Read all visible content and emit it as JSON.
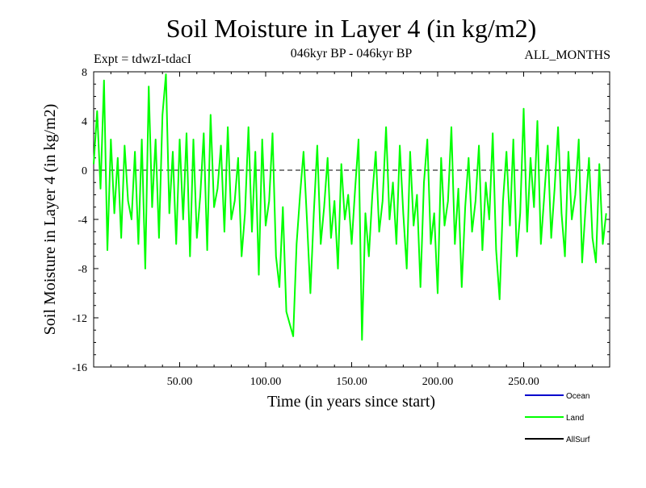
{
  "chart_data": {
    "type": "line",
    "title": "Soil Moisture in Layer 4 (in kg/m2)",
    "subtitle_left": "Expt = tdwzI-tdacI",
    "subtitle_center": "046kyr BP - 046kyr BP",
    "subtitle_right": "ALL_MONTHS",
    "xlabel": "Time (in years since start)",
    "ylabel": "Soil Moisture in Layer 4 (in kg/m2)",
    "xlim": [
      0,
      300
    ],
    "ylim": [
      -16,
      8
    ],
    "xticks": [
      50,
      100,
      150,
      200,
      250
    ],
    "xtick_labels": [
      "50.00",
      "100.00",
      "150.00",
      "200.00",
      "250.00"
    ],
    "yticks": [
      -16,
      -12,
      -8,
      -4,
      0,
      4,
      8
    ],
    "ytick_labels": [
      "-16",
      "-12",
      "-8",
      "-4",
      "0",
      "4",
      "8"
    ],
    "zero_line": true,
    "grid": false,
    "legend_position": "bottom-right",
    "series": [
      {
        "name": "Ocean",
        "color": "#0000cc",
        "x": [],
        "y": []
      },
      {
        "name": "Land",
        "color": "#00ff00",
        "x": [
          0,
          2,
          4,
          6,
          8,
          10,
          12,
          14,
          16,
          18,
          20,
          22,
          24,
          26,
          28,
          30,
          32,
          34,
          36,
          38,
          40,
          42,
          44,
          46,
          48,
          50,
          52,
          54,
          56,
          58,
          60,
          62,
          64,
          66,
          68,
          70,
          72,
          74,
          76,
          78,
          80,
          82,
          84,
          86,
          88,
          90,
          92,
          94,
          96,
          98,
          100,
          102,
          104,
          106,
          108,
          110,
          112,
          114,
          116,
          118,
          120,
          122,
          124,
          126,
          128,
          130,
          132,
          134,
          136,
          138,
          140,
          142,
          144,
          146,
          148,
          150,
          152,
          154,
          156,
          158,
          160,
          162,
          164,
          166,
          168,
          170,
          172,
          174,
          176,
          178,
          180,
          182,
          184,
          186,
          188,
          190,
          192,
          194,
          196,
          198,
          200,
          202,
          204,
          206,
          208,
          210,
          212,
          214,
          216,
          218,
          220,
          222,
          224,
          226,
          228,
          230,
          232,
          234,
          236,
          238,
          240,
          242,
          244,
          246,
          248,
          250,
          252,
          254,
          256,
          258,
          260,
          262,
          264,
          266,
          268,
          270,
          272,
          274,
          276,
          278,
          280,
          282,
          284,
          286,
          288,
          290,
          292,
          294,
          296,
          298
        ],
        "y": [
          0.5,
          4.8,
          -1.5,
          7.3,
          -6.5,
          2.5,
          -3.5,
          1.0,
          -5.5,
          2.0,
          -2.5,
          -4.0,
          1.5,
          -6.0,
          2.5,
          -8.0,
          6.8,
          -3.0,
          2.5,
          -5.5,
          4.5,
          7.8,
          -3.5,
          1.5,
          -6.0,
          2.5,
          -4.0,
          3.0,
          -7.0,
          2.5,
          -5.5,
          -2.0,
          3.0,
          -6.5,
          4.5,
          -3.0,
          -1.5,
          2.0,
          -5.0,
          3.5,
          -4.0,
          -2.5,
          1.0,
          -7.0,
          -3.5,
          3.5,
          -5.0,
          1.5,
          -8.5,
          2.5,
          -4.5,
          -2.5,
          3.0,
          -7.0,
          -9.5,
          -3.0,
          -11.5,
          -12.5,
          -13.5,
          -6.0,
          -2.0,
          1.5,
          -4.0,
          -10.0,
          -3.5,
          2.0,
          -6.0,
          -3.0,
          1.0,
          -5.5,
          -2.5,
          -8.0,
          0.5,
          -4.0,
          -2.0,
          -6.0,
          -1.5,
          2.5,
          -13.8,
          -3.5,
          -7.0,
          -2.0,
          1.5,
          -5.0,
          -2.5,
          3.5,
          -4.0,
          -1.0,
          -6.0,
          2.0,
          -3.5,
          -8.0,
          1.5,
          -4.5,
          -2.0,
          -9.5,
          -1.0,
          2.5,
          -6.0,
          -3.5,
          -10.0,
          1.0,
          -4.5,
          -2.5,
          3.5,
          -6.0,
          -1.5,
          -9.5,
          -3.0,
          1.0,
          -5.0,
          -2.5,
          2.0,
          -6.5,
          -1.0,
          -4.0,
          3.0,
          -6.5,
          -10.5,
          -2.5,
          1.5,
          -4.5,
          2.5,
          -7.0,
          -3.5,
          5.0,
          -5.0,
          1.0,
          -3.0,
          4.0,
          -6.0,
          -2.0,
          2.0,
          -5.5,
          -1.5,
          3.5,
          -3.5,
          -7.0,
          1.5,
          -4.0,
          -2.0,
          2.5,
          -7.5,
          -3.0,
          1.0,
          -5.5,
          -7.5,
          0.5,
          -6.0,
          -3.5
        ]
      },
      {
        "name": "AllSurf",
        "color": "#000000",
        "x": [],
        "y": []
      }
    ]
  }
}
